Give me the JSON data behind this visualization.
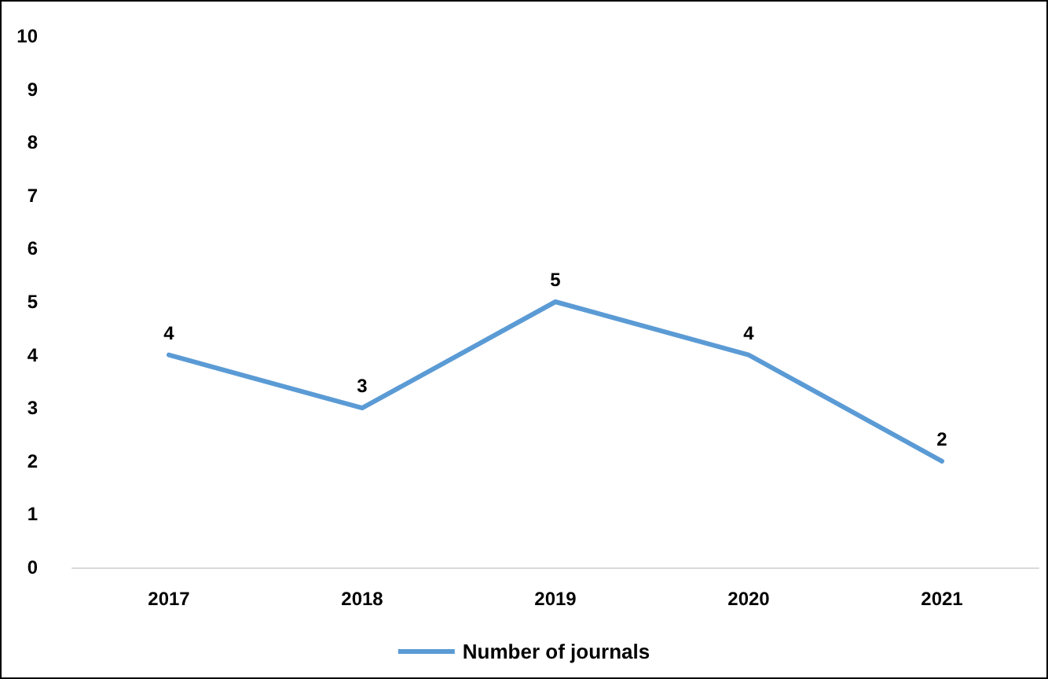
{
  "chart_data": {
    "type": "line",
    "categories": [
      "2017",
      "2018",
      "2019",
      "2020",
      "2021"
    ],
    "series": [
      {
        "name": "Number of journals",
        "color": "#5b9bd5",
        "values": [
          4,
          3,
          5,
          4,
          2
        ]
      }
    ],
    "ylim": [
      0,
      10
    ],
    "yticks": [
      0,
      1,
      2,
      3,
      4,
      5,
      6,
      7,
      8,
      9,
      10
    ],
    "grid": false,
    "legend": "bottom",
    "marker": "none",
    "line_style": "solid",
    "data_labels": true
  }
}
